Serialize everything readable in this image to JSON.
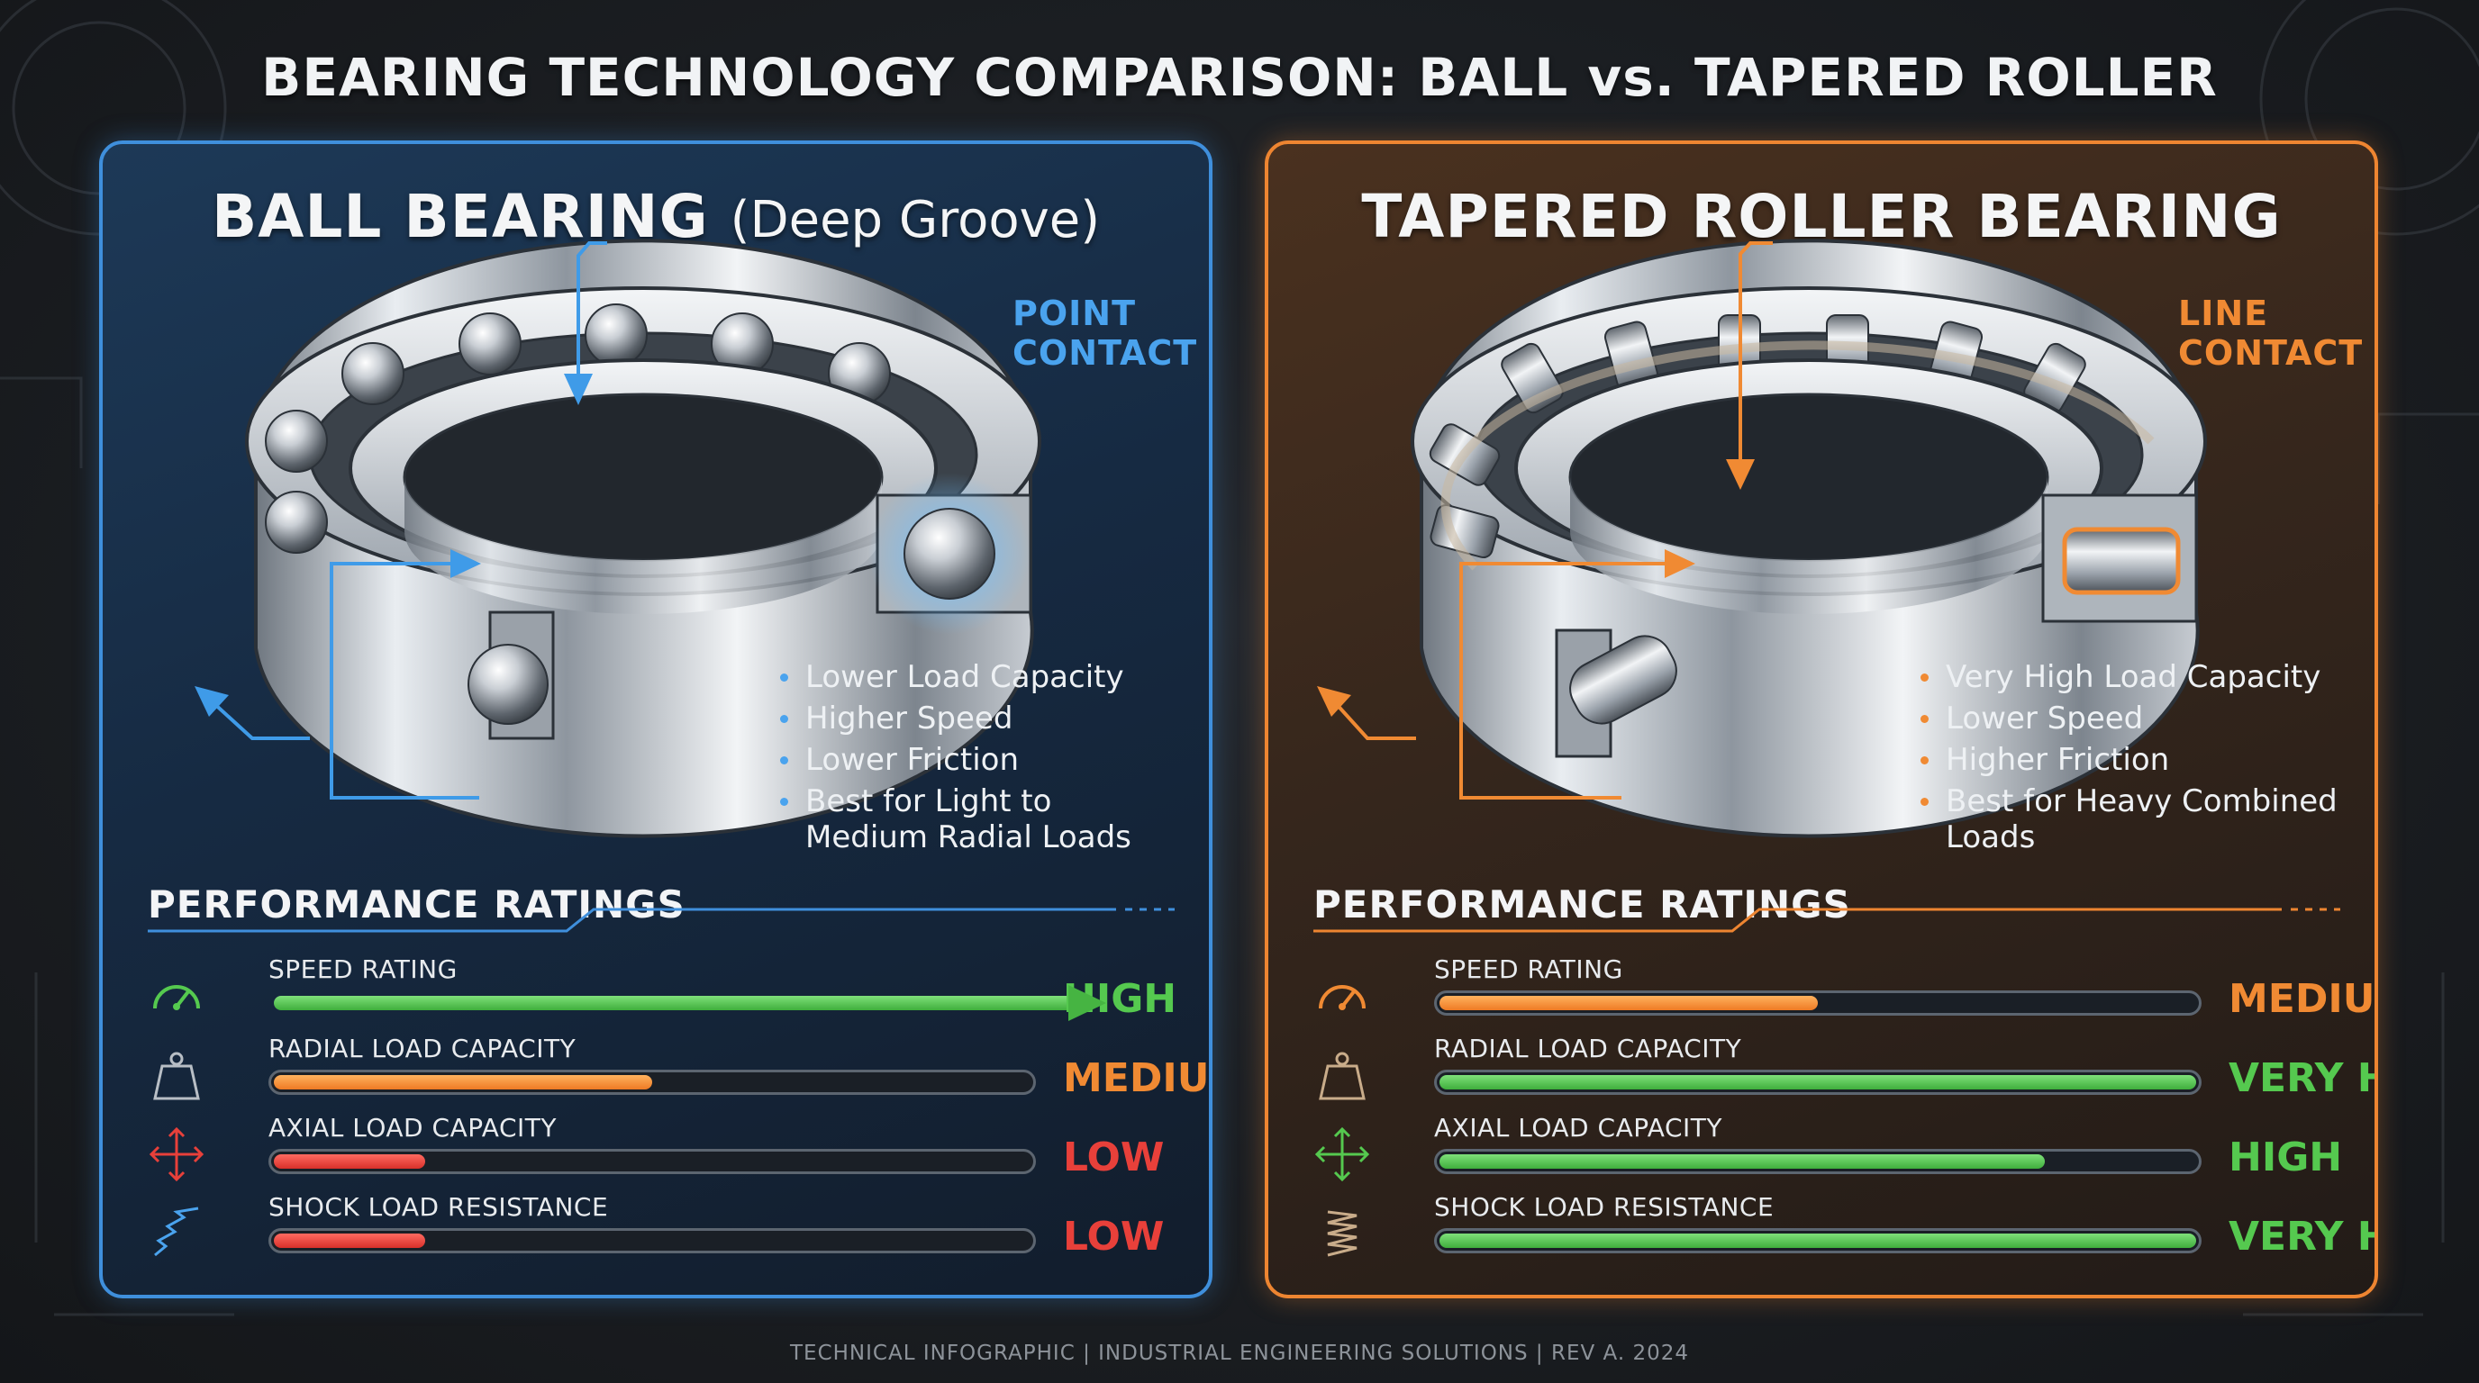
{
  "title": "BEARING TECHNOLOGY COMPARISON: BALL vs. TAPERED ROLLER",
  "left": {
    "title_main": "BALL BEARING",
    "title_sub": "(Deep Groove)",
    "callout": [
      "POINT",
      "CONTACT"
    ],
    "features": [
      "Lower Load Capacity",
      "Higher Speed",
      "Lower Friction",
      "Best for Light to Medium Radial Loads"
    ],
    "perf_heading": "PERFORMANCE RATINGS",
    "ratings": [
      {
        "label": "SPEED RATING",
        "value": "HIGH",
        "level": 1.0,
        "color": "green",
        "icon": "speedometer-icon"
      },
      {
        "label": "RADIAL LOAD CAPACITY",
        "value": "MEDIUM",
        "level": 0.5,
        "color": "orange",
        "icon": "weight-icon"
      },
      {
        "label": "AXIAL LOAD CAPACITY",
        "value": "LOW",
        "level": 0.2,
        "color": "red",
        "icon": "axial-arrows-icon"
      },
      {
        "label": "SHOCK LOAD RESISTANCE",
        "value": "LOW",
        "level": 0.2,
        "color": "red",
        "icon": "spring-icon"
      }
    ]
  },
  "right": {
    "title_main": "TAPERED ROLLER BEARING",
    "callout": [
      "LINE",
      "CONTACT"
    ],
    "features": [
      "Very High Load Capacity",
      "Lower Speed",
      "Higher Friction",
      "Best for Heavy Combined Loads"
    ],
    "perf_heading": "PERFORMANCE RATINGS",
    "ratings": [
      {
        "label": "SPEED RATING",
        "value": "MEDIUM",
        "level": 0.5,
        "color": "orange",
        "icon": "speedometer-icon"
      },
      {
        "label": "RADIAL LOAD CAPACITY",
        "value": "VERY HIGH",
        "level": 1.0,
        "color": "green",
        "icon": "weight-icon"
      },
      {
        "label": "AXIAL LOAD CAPACITY",
        "value": "HIGH",
        "level": 0.8,
        "color": "green",
        "icon": "axial-arrows-icon"
      },
      {
        "label": "SHOCK LOAD RESISTANCE",
        "value": "VERY HIGH",
        "level": 1.0,
        "color": "green",
        "icon": "spring-icon"
      }
    ]
  },
  "colors": {
    "blue": "#3f8fdc",
    "orange": "#ee8531",
    "green": "#55c94f",
    "red": "#e8403a"
  },
  "footer": "TECHNICAL INFOGRAPHIC  |  INDUSTRIAL ENGINEERING SOLUTIONS  |  REV A. 2024"
}
